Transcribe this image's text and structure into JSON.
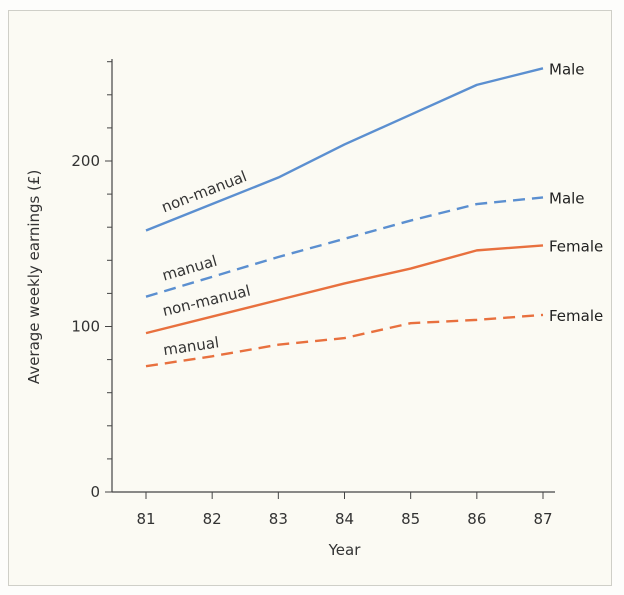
{
  "chart_data": {
    "type": "line",
    "xlabel": "Year",
    "ylabel": "Average weekly earnings (£)",
    "x": [
      81,
      82,
      83,
      84,
      85,
      86,
      87
    ],
    "xlim": [
      81,
      87
    ],
    "ylim": [
      0,
      260
    ],
    "yticks": [
      0,
      100,
      200
    ],
    "grid": false,
    "series": [
      {
        "label": "non-manual",
        "end_label": "Male",
        "color": "#5b8fd0",
        "dash": "solid",
        "values": [
          158,
          174,
          190,
          210,
          228,
          246,
          256
        ]
      },
      {
        "label": "manual",
        "end_label": "Male",
        "color": "#5b8fd0",
        "dash": "dashed",
        "values": [
          118,
          130,
          142,
          153,
          164,
          174,
          178
        ]
      },
      {
        "label": "non-manual",
        "end_label": "Female",
        "color": "#e8703e",
        "dash": "solid",
        "values": [
          96,
          106,
          116,
          126,
          135,
          146,
          149
        ]
      },
      {
        "label": "manual",
        "end_label": "Female",
        "color": "#e8703e",
        "dash": "dashed",
        "values": [
          76,
          82,
          89,
          93,
          102,
          104,
          107
        ]
      }
    ]
  }
}
